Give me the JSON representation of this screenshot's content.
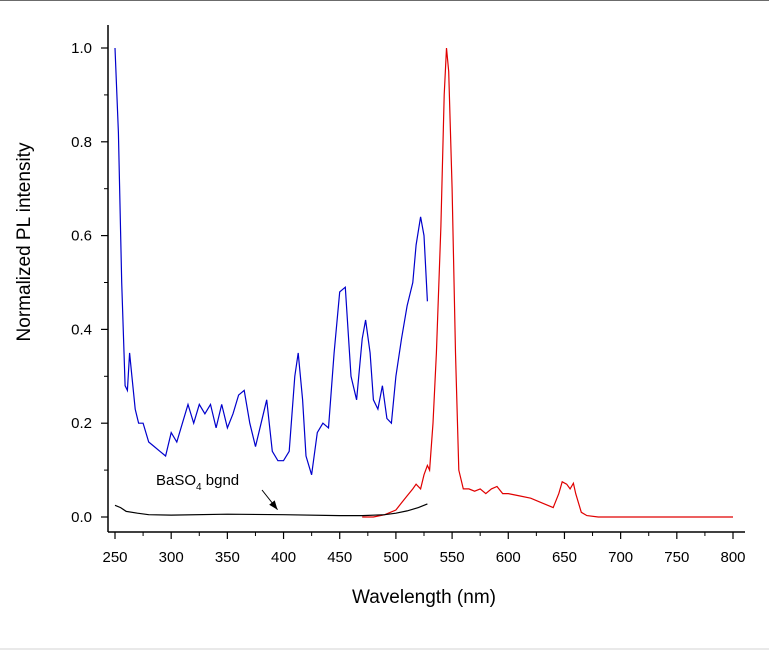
{
  "chart_data": {
    "type": "line",
    "title": "",
    "xlabel": "Wavelength (nm)",
    "ylabel": "Normalized PL intensity",
    "xlim": [
      245,
      802
    ],
    "ylim": [
      -0.02,
      1.05
    ],
    "x_ticks": [
      250,
      300,
      350,
      400,
      450,
      500,
      550,
      600,
      650,
      700,
      750,
      800
    ],
    "y_ticks": [
      0.0,
      0.2,
      0.4,
      0.6,
      0.8,
      1.0
    ],
    "y_tick_labels": [
      "0.0",
      "0.2",
      "0.4",
      "0.6",
      "0.8",
      "1.0"
    ],
    "grid": false,
    "annotation": {
      "text_main": "BaSO",
      "text_sub": "4",
      "text_rest": " bgnd",
      "arrow_to": [
        400,
        0.005
      ]
    },
    "series": [
      {
        "color": "#0000cc",
        "x": [
          250,
          253,
          256,
          259,
          261,
          263,
          265,
          268,
          271,
          275,
          280,
          285,
          290,
          295,
          300,
          305,
          310,
          315,
          320,
          325,
          330,
          335,
          340,
          345,
          350,
          355,
          360,
          365,
          370,
          375,
          380,
          385,
          390,
          395,
          400,
          405,
          410,
          413,
          417,
          420,
          425,
          430,
          435,
          440,
          445,
          450,
          455,
          460,
          465,
          470,
          473,
          477,
          480,
          484,
          488,
          492,
          496,
          500,
          505,
          510,
          515,
          518,
          522,
          525,
          528
        ],
        "y": [
          1.0,
          0.82,
          0.5,
          0.28,
          0.27,
          0.35,
          0.3,
          0.23,
          0.2,
          0.2,
          0.16,
          0.15,
          0.14,
          0.13,
          0.18,
          0.16,
          0.2,
          0.24,
          0.2,
          0.24,
          0.22,
          0.24,
          0.19,
          0.24,
          0.19,
          0.22,
          0.26,
          0.27,
          0.2,
          0.15,
          0.2,
          0.25,
          0.14,
          0.12,
          0.12,
          0.14,
          0.3,
          0.35,
          0.25,
          0.13,
          0.09,
          0.18,
          0.2,
          0.19,
          0.35,
          0.48,
          0.49,
          0.3,
          0.25,
          0.38,
          0.42,
          0.35,
          0.25,
          0.23,
          0.28,
          0.21,
          0.2,
          0.3,
          0.38,
          0.45,
          0.5,
          0.58,
          0.64,
          0.6,
          0.46
        ]
      },
      {
        "color": "#e00000",
        "x": [
          470,
          480,
          490,
          500,
          505,
          510,
          515,
          518,
          522,
          525,
          528,
          530,
          533,
          536,
          540,
          543,
          545,
          547,
          550,
          553,
          556,
          560,
          565,
          570,
          575,
          580,
          585,
          590,
          595,
          600,
          610,
          620,
          630,
          640,
          645,
          648,
          652,
          655,
          658,
          660,
          665,
          670,
          680,
          700,
          720,
          740,
          760,
          780,
          800
        ],
        "y": [
          0.0,
          0.0,
          0.005,
          0.015,
          0.03,
          0.045,
          0.06,
          0.07,
          0.06,
          0.09,
          0.11,
          0.1,
          0.2,
          0.35,
          0.62,
          0.9,
          1.0,
          0.95,
          0.7,
          0.35,
          0.1,
          0.06,
          0.06,
          0.055,
          0.06,
          0.05,
          0.06,
          0.065,
          0.05,
          0.05,
          0.045,
          0.04,
          0.03,
          0.02,
          0.05,
          0.075,
          0.07,
          0.06,
          0.072,
          0.05,
          0.01,
          0.003,
          0.0,
          0.0,
          0.0,
          0.0,
          0.0,
          0.0,
          0.0
        ]
      },
      {
        "color": "#000000",
        "x": [
          250,
          255,
          260,
          270,
          280,
          300,
          350,
          400,
          450,
          470,
          490,
          500,
          510,
          520,
          528
        ],
        "y": [
          0.025,
          0.02,
          0.012,
          0.008,
          0.005,
          0.004,
          0.006,
          0.005,
          0.003,
          0.003,
          0.005,
          0.008,
          0.013,
          0.02,
          0.028
        ]
      }
    ]
  }
}
